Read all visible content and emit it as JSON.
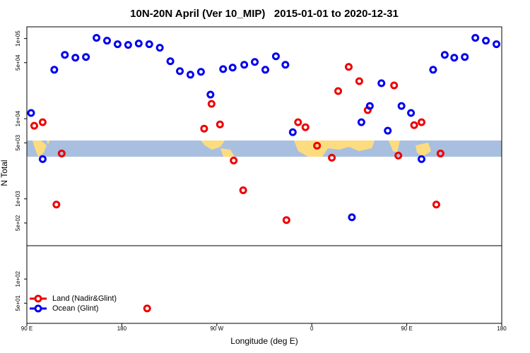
{
  "chart_data": {
    "type": "scatter",
    "title": "10N-20N April (Ver 10_MIP)   2015-01-01 to 2020-12-31",
    "xlabel": "Longitude (deg E)",
    "ylabel": "N Total",
    "xlim": [
      90,
      540
    ],
    "xticks": [
      {
        "value": 90,
        "label": "90 E"
      },
      {
        "value": 180,
        "label": "180"
      },
      {
        "value": 270,
        "label": "90 W"
      },
      {
        "value": 360,
        "label": "0"
      },
      {
        "value": 450,
        "label": "90 E"
      },
      {
        "value": 540,
        "label": "180"
      }
    ],
    "ylim": [
      28,
      140000
    ],
    "yscale": "log",
    "yticks": [
      {
        "value": 50,
        "label": "5e+01"
      },
      {
        "value": 100,
        "label": "1e+02"
      },
      {
        "value": 500,
        "label": "5e+02"
      },
      {
        "value": 1000,
        "label": "1e+03"
      },
      {
        "value": 5000,
        "label": "5e+03"
      },
      {
        "value": 10000,
        "label": "1e+04"
      },
      {
        "value": 50000,
        "label": "5e+04"
      },
      {
        "value": 100000,
        "label": "1e+05"
      }
    ],
    "legend": "bottom-left",
    "series": [
      {
        "name": "Land (Nadir&Glint)",
        "color": "#ee0000",
        "x": [
          97,
          105,
          118,
          123,
          204,
          258,
          265,
          273,
          286,
          295,
          336,
          347,
          354,
          365,
          379,
          385,
          395,
          405,
          413,
          438,
          442,
          457,
          464,
          478,
          482
        ],
        "values": [
          8160,
          9030,
          849,
          3680,
          43,
          7520,
          15300,
          8490,
          3010,
          1280,
          543,
          9030,
          7830,
          4610,
          3260,
          22100,
          44300,
          29400,
          12800,
          26000,
          3470,
          8320,
          9030,
          849,
          3680
        ]
      },
      {
        "name": "Ocean (Glint)",
        "color": "#0000ee",
        "x": [
          94,
          105,
          116,
          126,
          136,
          146,
          156,
          166,
          176,
          186,
          196,
          206,
          216,
          226,
          235,
          245,
          255,
          264,
          276,
          285,
          296,
          306,
          316,
          326,
          335,
          342,
          398,
          407,
          415,
          426,
          432,
          445,
          454,
          464,
          475,
          486,
          495,
          505,
          515,
          525,
          535
        ],
        "values": [
          11800,
          3130,
          40800,
          62600,
          57700,
          58900,
          102000,
          94100,
          84900,
          83300,
          86700,
          84900,
          76700,
          52100,
          39200,
          35400,
          38400,
          20000,
          41600,
          43400,
          47100,
          51000,
          40800,
          60100,
          47100,
          6790,
          589,
          9030,
          14400,
          27700,
          7080,
          14400,
          11800,
          3130,
          40800,
          62600,
          57700,
          58900,
          102000,
          94100,
          84900
        ]
      }
    ]
  }
}
